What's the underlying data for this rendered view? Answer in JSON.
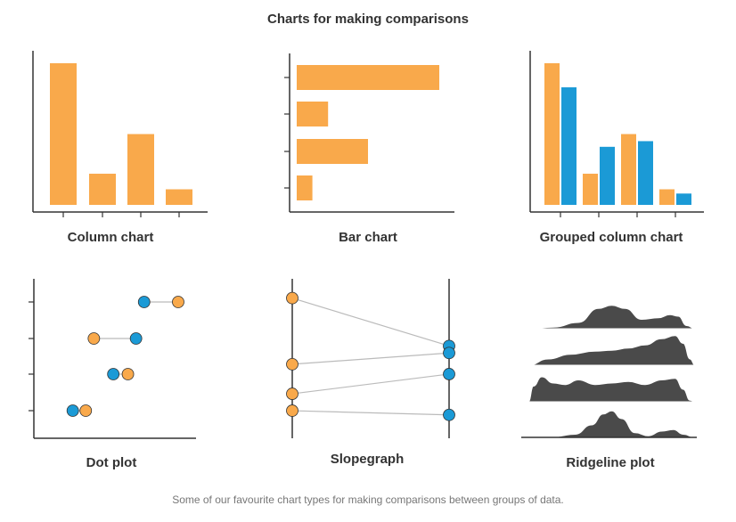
{
  "page": {
    "title": "Charts for making comparisons",
    "caption": "Some of our favourite chart types for making comparisons between groups of data."
  },
  "colors": {
    "orange": "#F9A94B",
    "blue": "#1B9AD6",
    "dark": "#4A4A4A",
    "axis": "#333333",
    "connector": "#BBBBBB"
  },
  "chart_data": [
    {
      "type": "bar",
      "orientation": "vertical",
      "label": "Column chart",
      "values": [
        100,
        22,
        50,
        11
      ],
      "ylim": [
        0,
        100
      ]
    },
    {
      "type": "bar",
      "orientation": "horizontal",
      "label": "Bar chart",
      "values": [
        100,
        22,
        50,
        11
      ],
      "xlim": [
        0,
        100
      ]
    },
    {
      "type": "bar",
      "orientation": "vertical",
      "label": "Grouped column chart",
      "series": [
        {
          "color": "orange",
          "values": [
            100,
            22,
            50,
            11
          ]
        },
        {
          "color": "blue",
          "values": [
            83,
            41,
            45,
            8
          ]
        }
      ],
      "ylim": [
        0,
        100
      ]
    },
    {
      "type": "scatter",
      "subtype": "dot",
      "label": "Dot plot",
      "rows": [
        {
          "blue": 68,
          "orange": 89
        },
        {
          "blue": 63,
          "orange": 37
        },
        {
          "blue": 49,
          "orange": 58
        },
        {
          "blue": 24,
          "orange": 32
        }
      ],
      "xlim": [
        0,
        100
      ]
    },
    {
      "type": "line",
      "subtype": "slopegraph",
      "label": "Slopegraph",
      "pairs": [
        {
          "left": 92,
          "right": 58
        },
        {
          "left": 45,
          "right": 53
        },
        {
          "left": 24,
          "right": 38
        },
        {
          "left": 12,
          "right": 9
        }
      ],
      "ylim": [
        0,
        100
      ]
    },
    {
      "type": "area",
      "subtype": "ridgeline",
      "label": "Ridgeline plot",
      "ridges": [
        [
          [
            0,
            0
          ],
          [
            0.15,
            0.05
          ],
          [
            0.3,
            0.2
          ],
          [
            0.42,
            0.65
          ],
          [
            0.5,
            0.75
          ],
          [
            0.58,
            0.65
          ],
          [
            0.68,
            0.3
          ],
          [
            0.78,
            0.35
          ],
          [
            0.85,
            0.45
          ],
          [
            0.9,
            0.4
          ],
          [
            0.95,
            0.1
          ],
          [
            1,
            0
          ]
        ],
        [
          [
            0,
            0
          ],
          [
            0.12,
            0.2
          ],
          [
            0.25,
            0.35
          ],
          [
            0.4,
            0.45
          ],
          [
            0.5,
            0.48
          ],
          [
            0.6,
            0.55
          ],
          [
            0.7,
            0.65
          ],
          [
            0.8,
            0.85
          ],
          [
            0.88,
            0.95
          ],
          [
            0.93,
            0.7
          ],
          [
            0.97,
            0.2
          ],
          [
            1,
            0
          ]
        ],
        [
          [
            0,
            0
          ],
          [
            0.03,
            0.5
          ],
          [
            0.08,
            0.8
          ],
          [
            0.15,
            0.6
          ],
          [
            0.22,
            0.55
          ],
          [
            0.3,
            0.7
          ],
          [
            0.4,
            0.55
          ],
          [
            0.5,
            0.6
          ],
          [
            0.6,
            0.65
          ],
          [
            0.7,
            0.55
          ],
          [
            0.8,
            0.7
          ],
          [
            0.88,
            0.75
          ],
          [
            0.93,
            0.4
          ],
          [
            0.97,
            0.05
          ],
          [
            1,
            0
          ]
        ],
        [
          [
            0,
            0
          ],
          [
            0.15,
            0.02
          ],
          [
            0.28,
            0.1
          ],
          [
            0.38,
            0.4
          ],
          [
            0.45,
            0.75
          ],
          [
            0.5,
            0.85
          ],
          [
            0.56,
            0.6
          ],
          [
            0.64,
            0.15
          ],
          [
            0.72,
            0.05
          ],
          [
            0.8,
            0.2
          ],
          [
            0.87,
            0.25
          ],
          [
            0.93,
            0.1
          ],
          [
            1,
            0
          ]
        ]
      ]
    }
  ]
}
